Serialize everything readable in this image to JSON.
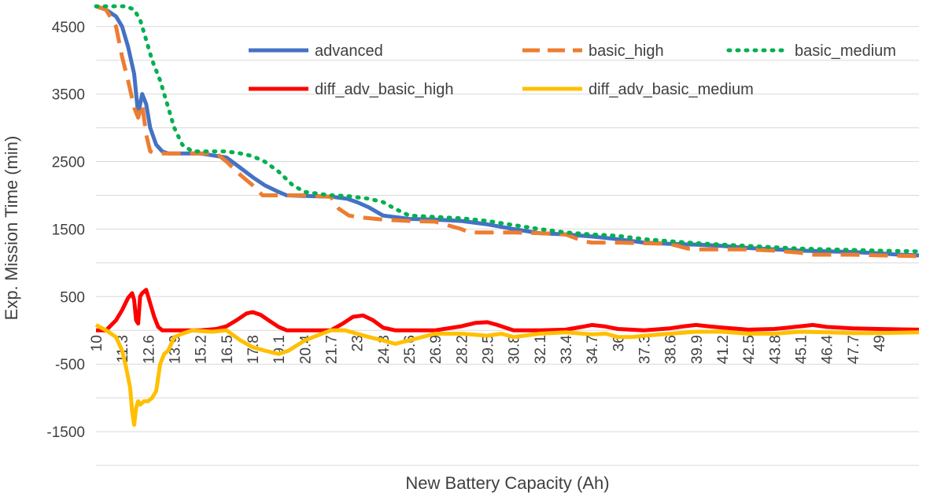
{
  "chart_data": {
    "type": "line",
    "title": "",
    "xlabel": "New Battery Capacity (Ah)",
    "ylabel": "Exp. Mission Time (min)",
    "x_range": [
      10,
      51
    ],
    "ylim": [
      -2000,
      4800
    ],
    "y_ticks": [
      4500,
      3500,
      2500,
      1500,
      500,
      -500,
      -1500
    ],
    "x_ticks": [
      "10",
      "11.3",
      "12.6",
      "13.9",
      "15.2",
      "16.5",
      "17.8",
      "19.1",
      "20.4",
      "21.7",
      "23",
      "24.3",
      "25.6",
      "26.9",
      "28.2",
      "29.5",
      "30.8",
      "32.1",
      "33.4",
      "34.7",
      "36",
      "37.3",
      "38.6",
      "39.9",
      "41.2",
      "42.5",
      "43.8",
      "45.1",
      "46.4",
      "47.7",
      "49"
    ],
    "grid": true,
    "legend_position": "top-right",
    "series": [
      {
        "name": "advanced",
        "color": "#4472C4",
        "style": "solid",
        "x": [
          10,
          10.5,
          11,
          11.3,
          11.6,
          11.9,
          12.1,
          12.3,
          12.5,
          12.7,
          13.0,
          13.3,
          13.6,
          13.9,
          14.5,
          15.2,
          16.5,
          17.0,
          17.8,
          18.4,
          19.1,
          19.5,
          20.4,
          21.7,
          22.5,
          23,
          23.6,
          24.3,
          25.6,
          26.9,
          28.2,
          29.5,
          30.8,
          32.1,
          33.4,
          34.7,
          36,
          37.3,
          38.6,
          39.9,
          41.2,
          42.5,
          43.8,
          45.1,
          46.4,
          47.7,
          49,
          50,
          51
        ],
        "y": [
          4800,
          4750,
          4650,
          4500,
          4200,
          3800,
          3200,
          3500,
          3350,
          3000,
          2750,
          2650,
          2620,
          2620,
          2620,
          2620,
          2560,
          2450,
          2270,
          2150,
          2050,
          2000,
          1990,
          1980,
          1950,
          1900,
          1820,
          1700,
          1650,
          1640,
          1620,
          1570,
          1500,
          1440,
          1420,
          1390,
          1350,
          1300,
          1280,
          1270,
          1250,
          1220,
          1200,
          1180,
          1170,
          1160,
          1140,
          1120,
          1110
        ]
      },
      {
        "name": "basic_high",
        "color": "#ED7D31",
        "style": "dashed",
        "x": [
          10,
          10.5,
          11,
          11.3,
          11.6,
          11.9,
          12.1,
          12.3,
          12.5,
          12.7,
          13.0,
          13.3,
          13.9,
          14.5,
          15.2,
          16.0,
          16.5,
          17.2,
          17.8,
          18.3,
          18.6,
          19.1,
          20.4,
          21.7,
          22.1,
          22.6,
          23,
          24.3,
          25.6,
          26.9,
          28.2,
          28.6,
          29.5,
          30.8,
          32.1,
          33.4,
          34.3,
          34.7,
          36,
          37.3,
          38.6,
          39.5,
          39.9,
          41.2,
          42.5,
          43.8,
          45.1,
          45.6,
          46.4,
          47.7,
          49,
          51
        ],
        "y": [
          4800,
          4750,
          4500,
          4050,
          3700,
          3300,
          3150,
          3350,
          2900,
          2650,
          2620,
          2620,
          2620,
          2620,
          2620,
          2620,
          2500,
          2300,
          2150,
          2000,
          2000,
          2000,
          2000,
          1980,
          1800,
          1700,
          1680,
          1640,
          1620,
          1610,
          1500,
          1450,
          1450,
          1450,
          1440,
          1420,
          1320,
          1300,
          1300,
          1290,
          1280,
          1210,
          1200,
          1200,
          1200,
          1180,
          1150,
          1120,
          1120,
          1120,
          1110,
          1100
        ]
      },
      {
        "name": "basic_medium",
        "color": "#00B050",
        "style": "dotted",
        "x": [
          10,
          10.5,
          11,
          11.5,
          11.9,
          12.2,
          12.5,
          12.8,
          13.2,
          13.6,
          13.9,
          14.3,
          14.8,
          15.2,
          16.5,
          17.2,
          17.8,
          18.4,
          19.1,
          19.8,
          20.4,
          21.7,
          22.5,
          23,
          23.6,
          24.3,
          24.9,
          25.6,
          26.9,
          28.2,
          29.5,
          30.8,
          32.1,
          33.4,
          34.7,
          36,
          37.3,
          38.6,
          39.9,
          41.2,
          42.5,
          43.8,
          45.1,
          46.4,
          47.7,
          49,
          51
        ],
        "y": [
          4800,
          4800,
          4800,
          4800,
          4750,
          4600,
          4300,
          4000,
          3700,
          3300,
          3000,
          2750,
          2650,
          2650,
          2650,
          2620,
          2580,
          2500,
          2350,
          2150,
          2050,
          2000,
          1990,
          1970,
          1950,
          1900,
          1800,
          1700,
          1680,
          1660,
          1620,
          1560,
          1500,
          1450,
          1420,
          1400,
          1350,
          1320,
          1290,
          1270,
          1250,
          1230,
          1210,
          1200,
          1190,
          1180,
          1170
        ]
      },
      {
        "name": "diff_adv_basic_high",
        "color": "#FF0000",
        "style": "solid",
        "x": [
          10,
          10.5,
          11,
          11.3,
          11.6,
          11.8,
          11.9,
          12.0,
          12.1,
          12.2,
          12.3,
          12.5,
          12.7,
          12.9,
          13.1,
          13.3,
          13.9,
          14.5,
          15.2,
          16.0,
          16.5,
          17.0,
          17.5,
          17.8,
          18.2,
          18.6,
          19.1,
          19.5,
          20.4,
          21.7,
          22.3,
          22.8,
          23.3,
          23.8,
          24.3,
          24.9,
          25.6,
          26.9,
          28.2,
          28.9,
          29.5,
          30.0,
          30.8,
          32.1,
          33.4,
          34.2,
          34.7,
          35.3,
          36,
          37.3,
          38.6,
          39.3,
          39.9,
          40.5,
          41.2,
          42.5,
          43.8,
          44.5,
          45.1,
          45.7,
          46.4,
          47.7,
          49,
          51
        ],
        "y": [
          0,
          0,
          150,
          300,
          480,
          550,
          450,
          150,
          100,
          500,
          550,
          600,
          400,
          200,
          50,
          0,
          0,
          0,
          0,
          20,
          60,
          150,
          250,
          270,
          230,
          150,
          50,
          0,
          0,
          0,
          100,
          200,
          220,
          150,
          40,
          0,
          0,
          0,
          60,
          110,
          120,
          80,
          0,
          0,
          10,
          50,
          80,
          60,
          20,
          0,
          30,
          60,
          80,
          60,
          40,
          10,
          20,
          40,
          60,
          80,
          50,
          30,
          20,
          10
        ]
      },
      {
        "name": "diff_adv_basic_medium",
        "color": "#FFC000",
        "style": "solid",
        "x": [
          10,
          10.5,
          11,
          11.3,
          11.5,
          11.7,
          11.8,
          11.9,
          12.0,
          12.1,
          12.2,
          12.4,
          12.6,
          12.8,
          13.0,
          13.2,
          13.4,
          13.6,
          13.9,
          14.3,
          14.8,
          15.2,
          15.8,
          16.5,
          17.2,
          17.8,
          18.4,
          19.1,
          19.6,
          20.4,
          21.7,
          22.4,
          23,
          23.6,
          24.3,
          24.9,
          25.6,
          26.9,
          28.2,
          29.5,
          30.2,
          30.8,
          32.1,
          33.4,
          34.7,
          35.4,
          36,
          36.7,
          37.3,
          38.6,
          39.9,
          41.2,
          42.5,
          43.8,
          45.1,
          46.4,
          47.7,
          49,
          51
        ],
        "y": [
          80,
          0,
          -100,
          -300,
          -550,
          -850,
          -1200,
          -1400,
          -1150,
          -1050,
          -1100,
          -1050,
          -1050,
          -1000,
          -900,
          -500,
          -350,
          -300,
          -100,
          -50,
          0,
          -10,
          -20,
          0,
          -150,
          -250,
          -300,
          -350,
          -300,
          -150,
          0,
          0,
          -50,
          -100,
          -150,
          -200,
          -150,
          -50,
          -50,
          -80,
          -50,
          -100,
          -50,
          -30,
          -60,
          -50,
          -100,
          -100,
          -80,
          -50,
          -20,
          -20,
          -50,
          -50,
          -20,
          -30,
          -40,
          -40,
          -30
        ]
      }
    ]
  }
}
